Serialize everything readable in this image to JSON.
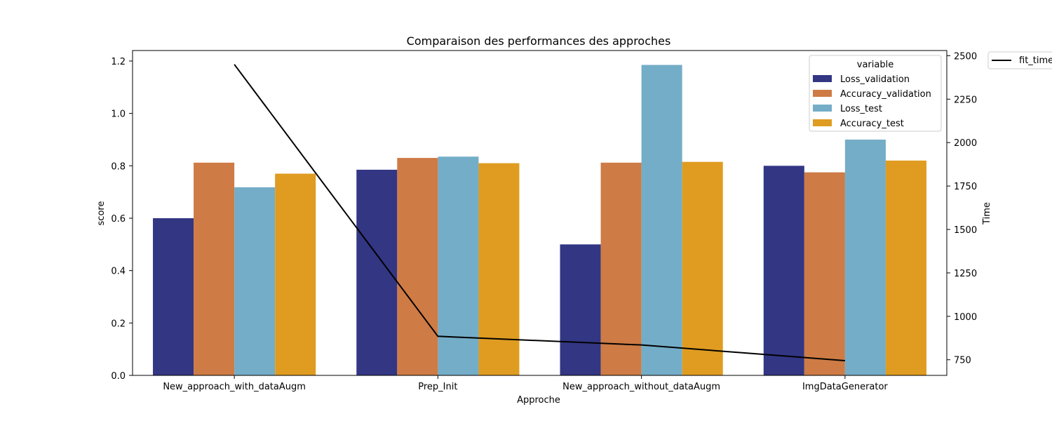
{
  "chart_data": {
    "type": "bar",
    "title": "Comparaison des performances des approches",
    "xlabel": "Approche",
    "ylabel": "score",
    "y2label": "Time",
    "categories": [
      "New_approach_with_dataAugm",
      "Prep_Init",
      "New_approach_without_dataAugm",
      "ImgDataGenerator"
    ],
    "ylim": [
      0,
      1.24
    ],
    "y2lim": [
      660,
      2530
    ],
    "yticks": [
      0.0,
      0.2,
      0.4,
      0.6,
      0.8,
      1.0,
      1.2
    ],
    "ytick_labels": [
      "0.0",
      "0.2",
      "0.4",
      "0.6",
      "0.8",
      "1.0",
      "1.2"
    ],
    "y2ticks": [
      750,
      1000,
      1250,
      1500,
      1750,
      2000,
      2250,
      2500
    ],
    "y2tick_labels": [
      "750",
      "1000",
      "1250",
      "1500",
      "1750",
      "2000",
      "2250",
      "2500"
    ],
    "legend_title": "variable",
    "legend_placement": "top-right",
    "grid": false,
    "series": [
      {
        "name": "Loss_validation",
        "color": "#323683",
        "values": [
          0.6,
          0.785,
          0.5,
          0.8
        ]
      },
      {
        "name": "Accuracy_validation",
        "color": "#ce7b45",
        "values": [
          0.812,
          0.83,
          0.812,
          0.775
        ]
      },
      {
        "name": "Loss_test",
        "color": "#74adc7",
        "values": [
          0.718,
          0.835,
          1.185,
          0.9
        ]
      },
      {
        "name": "Accuracy_test",
        "color": "#df9c21",
        "values": [
          0.77,
          0.81,
          0.815,
          0.82
        ]
      }
    ],
    "line_series": {
      "name": "fit_time",
      "color": "#000000",
      "axis": "right",
      "values": [
        2450,
        885,
        835,
        745
      ]
    }
  }
}
